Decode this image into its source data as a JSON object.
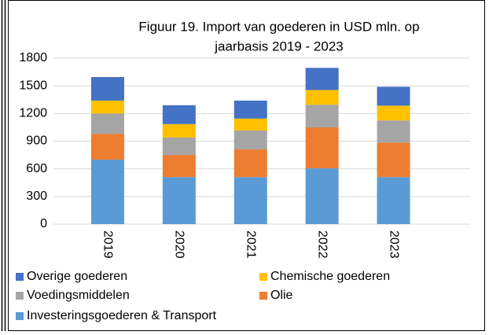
{
  "chart_data": {
    "type": "stacked_bar",
    "title": [
      "Figuur 19. Import van goederen in USD mln. op",
      "jaarbasis 2019 - 2023"
    ],
    "categories": [
      "2019",
      "2020",
      "2021",
      "2022",
      "2023"
    ],
    "series": [
      {
        "name": "Investeringsgoederen & Transport",
        "color": "#5b9bd5",
        "values": [
          700,
          510,
          510,
          605,
          510
        ]
      },
      {
        "name": "Olie",
        "color": "#ed7d31",
        "values": [
          280,
          240,
          300,
          445,
          375
        ]
      },
      {
        "name": "Voedingsmiddelen",
        "color": "#a5a5a5",
        "values": [
          220,
          190,
          205,
          245,
          240
        ]
      },
      {
        "name": "Chemische goederen",
        "color": "#ffc000",
        "values": [
          140,
          145,
          130,
          160,
          160
        ]
      },
      {
        "name": "Overige goederen",
        "color": "#4472c4",
        "values": [
          255,
          205,
          195,
          240,
          205
        ]
      }
    ],
    "ylim": [
      0,
      1800
    ],
    "yticks": [
      0,
      300,
      600,
      900,
      1200,
      1500,
      1800
    ],
    "grid": true
  }
}
